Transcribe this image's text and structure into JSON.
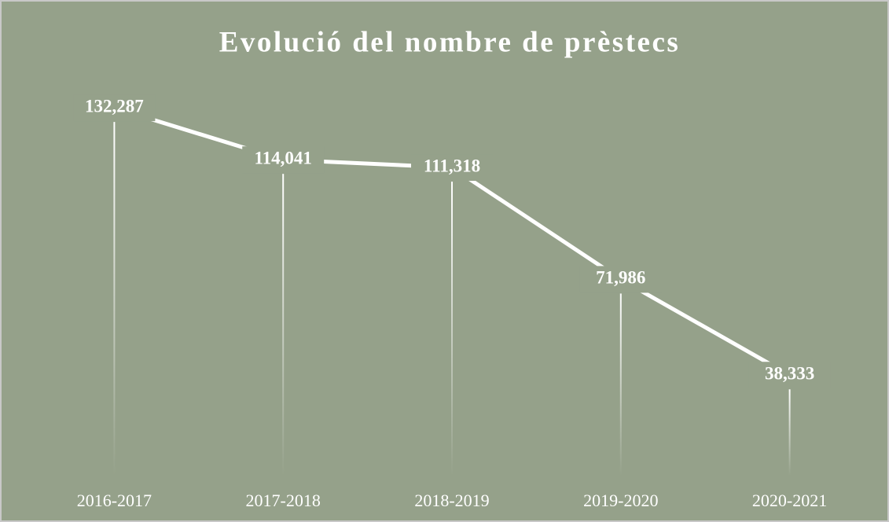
{
  "chart_data": {
    "type": "line",
    "title": "Evolució del nombre de prèstecs",
    "categories": [
      "2016-2017",
      "2017-2018",
      "2018-2019",
      "2019-2020",
      "2020-2021"
    ],
    "values": [
      132287,
      114041,
      111318,
      71986,
      38333
    ],
    "value_labels": [
      "132,287",
      "114,041",
      "111,318",
      "71,986",
      "38,333"
    ],
    "color": "#ffffff",
    "background": "#95a18a",
    "ylim": [
      0,
      150000
    ]
  }
}
